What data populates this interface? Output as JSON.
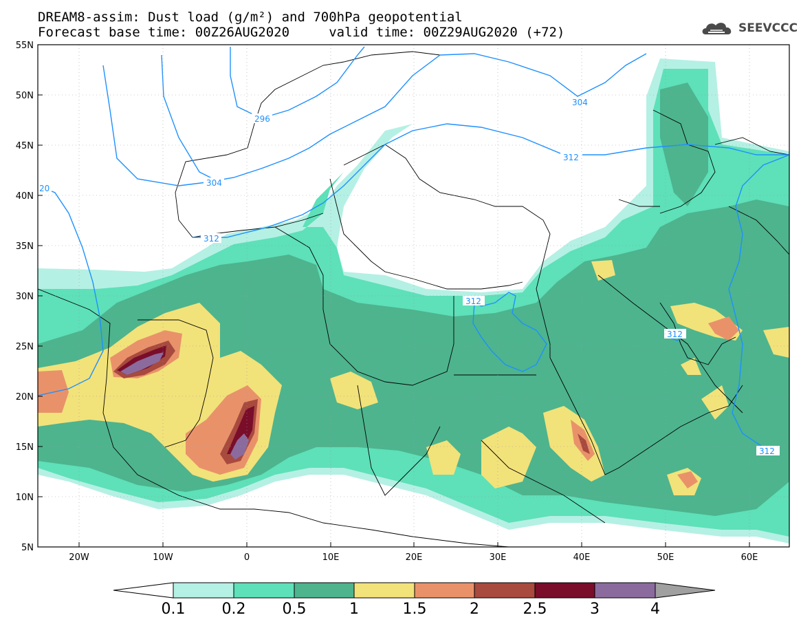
{
  "header": {
    "title_line1": "DREAM8-assim: Dust load (g/m²) and 700hPa geopotential",
    "title_line2": "Forecast base time: 00Z26AUG2020     valid time: 00Z29AUG2020 (+72)"
  },
  "logo": {
    "text": "SEEVCCC",
    "icon": "cloud-logo-icon"
  },
  "map": {
    "lat_labels": [
      "55N",
      "50N",
      "45N",
      "40N",
      "35N",
      "30N",
      "25N",
      "20N",
      "15N",
      "10N",
      "5N"
    ],
    "lon_labels": [
      "20W",
      "10W",
      "0",
      "10E",
      "20E",
      "30E",
      "40E",
      "50E",
      "60E"
    ],
    "contour_labels": [
      "296",
      "304",
      "304",
      "312",
      "312",
      "312",
      "312",
      "312",
      "20"
    ]
  },
  "colorbar": {
    "labels": [
      "0.1",
      "0.2",
      "0.5",
      "1",
      "1.5",
      "2",
      "2.5",
      "3",
      "4"
    ],
    "colors": [
      "#b5f0e4",
      "#5ee0b8",
      "#4db48e",
      "#f2e27a",
      "#e9926a",
      "#a84a3e",
      "#7a0d2a",
      "#8b6b9e"
    ],
    "under_color": "#ffffff",
    "over_color": "#a0a0a0"
  },
  "colors": {
    "contour": "#1e90ff",
    "coast": "#000000"
  }
}
